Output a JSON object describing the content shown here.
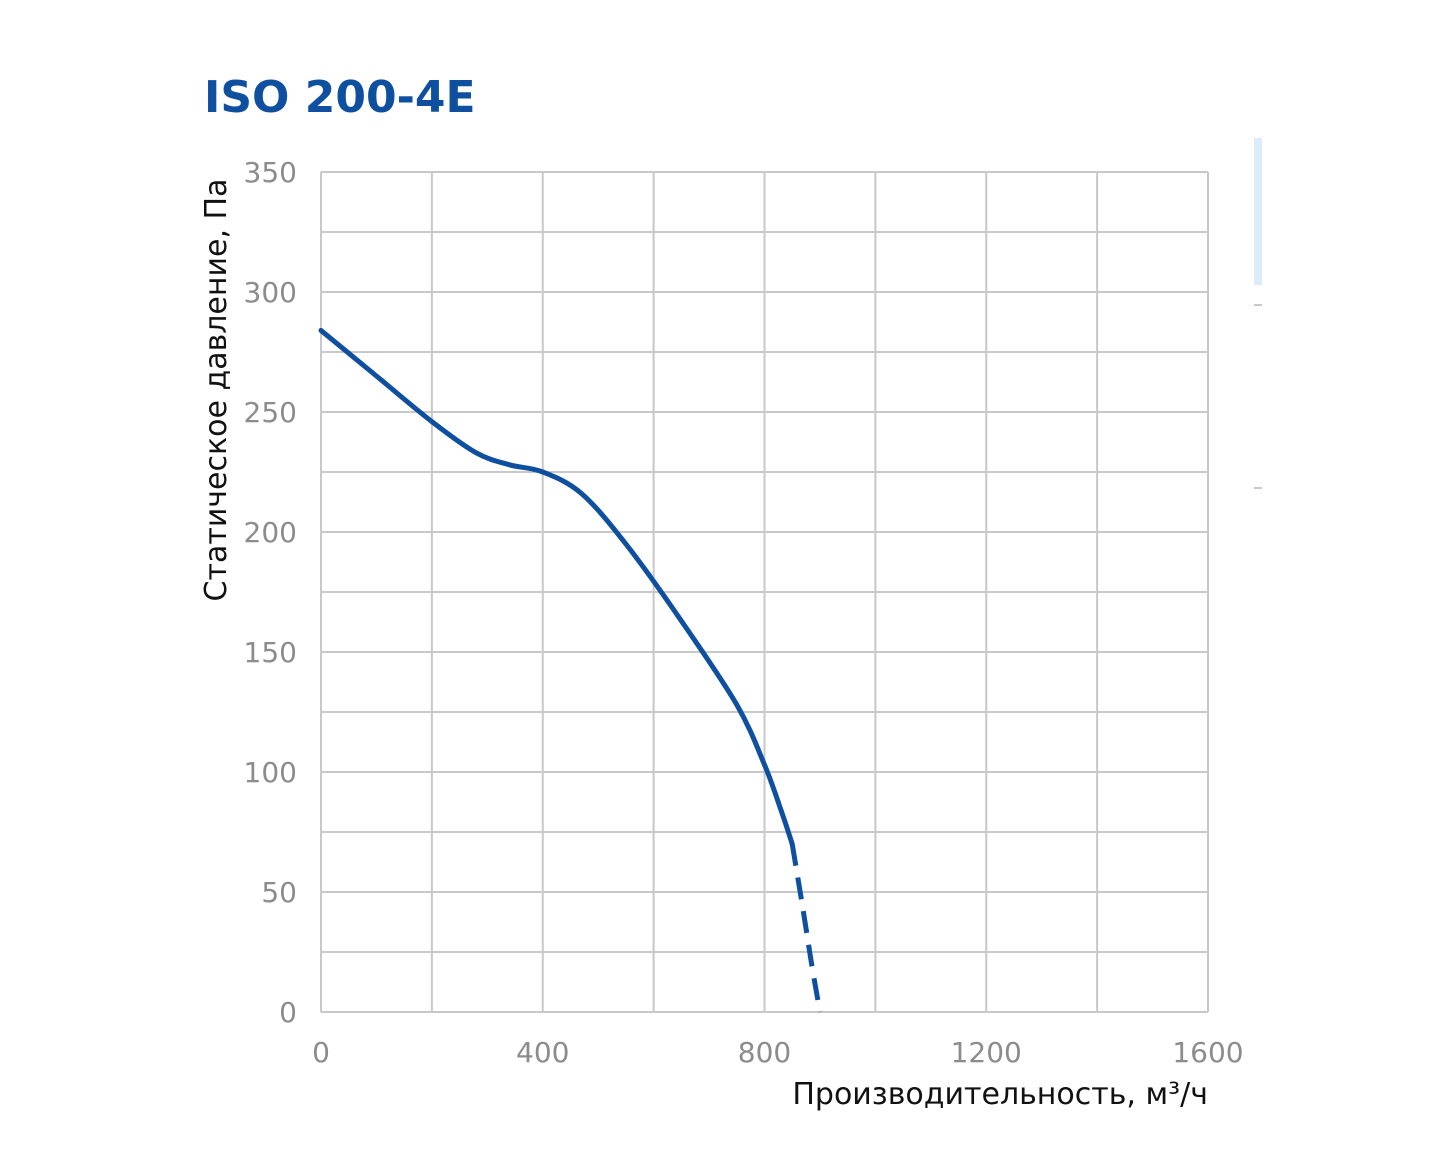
{
  "title": "ISO 200-4E",
  "colors": {
    "title": "#0e4fa0",
    "curve": "#0e4fa0",
    "grid": "#c8c8c8",
    "tick_text": "#8c8c8c",
    "legend_bg": "#dcecf8"
  },
  "chart_data": {
    "type": "line",
    "title": "ISO 200-4E",
    "xlabel": "Производительность, м³/ч",
    "ylabel": "Статическое давление, Па",
    "xlim": [
      0,
      1600
    ],
    "ylim": [
      0,
      350
    ],
    "x_ticks": [
      "0",
      "400",
      "800",
      "1200",
      "1600"
    ],
    "y_ticks": [
      "0",
      "50",
      "100",
      "150",
      "200",
      "250",
      "300",
      "350"
    ],
    "x_minor_step": 200,
    "y_minor_step": 25,
    "grid": true,
    "series": [
      {
        "style": "solid",
        "x": [
          0,
          100,
          200,
          280,
          340,
          400,
          470,
          550,
          650,
          750,
          800,
          830,
          850
        ],
        "y": [
          284,
          265,
          246,
          233,
          228,
          225,
          216,
          195,
          163,
          128,
          103,
          84,
          70
        ]
      },
      {
        "style": "dashed",
        "x": [
          850,
          870,
          885,
          900
        ],
        "y": [
          70,
          42,
          20,
          0
        ]
      }
    ]
  }
}
